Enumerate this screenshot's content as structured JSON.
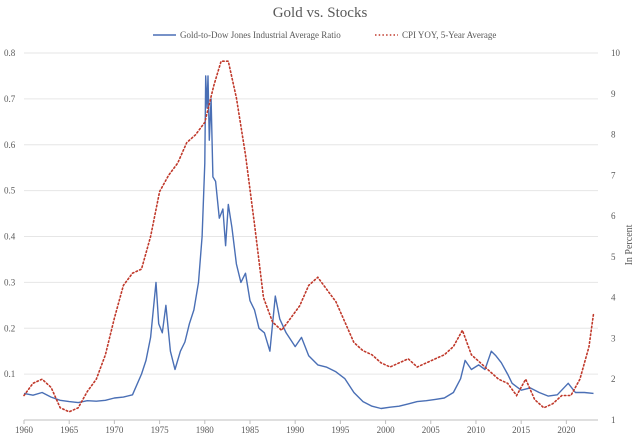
{
  "chart_data": {
    "type": "line",
    "title": "Gold vs. Stocks",
    "xlabel": "",
    "ylabel_left": "",
    "ylabel_right": "In Percent",
    "xlim": [
      1960,
      2023.5
    ],
    "ylim_left": [
      0,
      0.8
    ],
    "ylim_right": [
      1,
      10
    ],
    "x_ticks": [
      1960,
      1965,
      1970,
      1975,
      1980,
      1985,
      1990,
      1995,
      2000,
      2005,
      2010,
      2015,
      2020
    ],
    "x_tick_labels": [
      "1960",
      "1965",
      "1970",
      "1975",
      "1980",
      "1985",
      "1990",
      "1995",
      "2000",
      "2005",
      "2010",
      "2015",
      "2020"
    ],
    "y_left_ticks": [
      0.1,
      0.2,
      0.3,
      0.4,
      0.5,
      0.6,
      0.7,
      0.8
    ],
    "y_left_tick_labels": [
      "0.1",
      "0.2",
      "0.3",
      "0.4",
      "0.5",
      "0.6",
      "0.7",
      "0.8"
    ],
    "y_right_ticks": [
      1,
      2,
      3,
      4,
      5,
      6,
      7,
      8,
      9,
      10
    ],
    "y_right_tick_labels": [
      "1",
      "2",
      "3",
      "4",
      "5",
      "6",
      "7",
      "8",
      "9",
      "10"
    ],
    "legend_position": "top-center",
    "series": [
      {
        "name": "Gold-to-Dow Jones Industrial Average Ratio",
        "axis": "left",
        "color": "#4a6fb5",
        "style": "solid",
        "points": [
          [
            1960.0,
            0.058
          ],
          [
            1961.0,
            0.054
          ],
          [
            1962.0,
            0.06
          ],
          [
            1963.0,
            0.05
          ],
          [
            1964.0,
            0.043
          ],
          [
            1965.0,
            0.04
          ],
          [
            1966.0,
            0.038
          ],
          [
            1967.0,
            0.042
          ],
          [
            1968.0,
            0.041
          ],
          [
            1969.0,
            0.043
          ],
          [
            1970.0,
            0.048
          ],
          [
            1971.0,
            0.05
          ],
          [
            1972.0,
            0.055
          ],
          [
            1973.0,
            0.1
          ],
          [
            1973.5,
            0.13
          ],
          [
            1974.0,
            0.18
          ],
          [
            1974.4,
            0.26
          ],
          [
            1974.6,
            0.3
          ],
          [
            1974.9,
            0.21
          ],
          [
            1975.3,
            0.19
          ],
          [
            1975.7,
            0.25
          ],
          [
            1976.2,
            0.15
          ],
          [
            1976.7,
            0.11
          ],
          [
            1977.3,
            0.15
          ],
          [
            1977.8,
            0.17
          ],
          [
            1978.3,
            0.21
          ],
          [
            1978.8,
            0.24
          ],
          [
            1979.3,
            0.3
          ],
          [
            1979.7,
            0.4
          ],
          [
            1980.0,
            0.56
          ],
          [
            1980.1,
            0.75
          ],
          [
            1980.25,
            0.68
          ],
          [
            1980.35,
            0.75
          ],
          [
            1980.5,
            0.61
          ],
          [
            1980.7,
            0.7
          ],
          [
            1980.9,
            0.53
          ],
          [
            1981.2,
            0.52
          ],
          [
            1981.6,
            0.44
          ],
          [
            1982.0,
            0.46
          ],
          [
            1982.3,
            0.38
          ],
          [
            1982.6,
            0.47
          ],
          [
            1983.0,
            0.42
          ],
          [
            1983.5,
            0.34
          ],
          [
            1984.0,
            0.3
          ],
          [
            1984.5,
            0.32
          ],
          [
            1985.0,
            0.26
          ],
          [
            1985.5,
            0.24
          ],
          [
            1986.0,
            0.2
          ],
          [
            1986.6,
            0.19
          ],
          [
            1987.2,
            0.15
          ],
          [
            1987.8,
            0.27
          ],
          [
            1988.3,
            0.22
          ],
          [
            1989.0,
            0.19
          ],
          [
            1990.0,
            0.16
          ],
          [
            1990.7,
            0.18
          ],
          [
            1991.5,
            0.14
          ],
          [
            1992.5,
            0.12
          ],
          [
            1993.5,
            0.115
          ],
          [
            1994.5,
            0.105
          ],
          [
            1995.5,
            0.09
          ],
          [
            1996.5,
            0.06
          ],
          [
            1997.5,
            0.04
          ],
          [
            1998.5,
            0.03
          ],
          [
            1999.5,
            0.025
          ],
          [
            2000.5,
            0.028
          ],
          [
            2001.5,
            0.03
          ],
          [
            2002.5,
            0.035
          ],
          [
            2003.5,
            0.04
          ],
          [
            2004.5,
            0.042
          ],
          [
            2005.5,
            0.045
          ],
          [
            2006.5,
            0.048
          ],
          [
            2007.5,
            0.06
          ],
          [
            2008.3,
            0.09
          ],
          [
            2008.8,
            0.13
          ],
          [
            2009.5,
            0.11
          ],
          [
            2010.3,
            0.12
          ],
          [
            2011.0,
            0.11
          ],
          [
            2011.7,
            0.15
          ],
          [
            2012.2,
            0.14
          ],
          [
            2012.8,
            0.125
          ],
          [
            2013.5,
            0.1
          ],
          [
            2014.0,
            0.08
          ],
          [
            2015.0,
            0.065
          ],
          [
            2016.0,
            0.07
          ],
          [
            2017.0,
            0.06
          ],
          [
            2018.0,
            0.052
          ],
          [
            2019.0,
            0.055
          ],
          [
            2020.2,
            0.08
          ],
          [
            2021.0,
            0.06
          ],
          [
            2022.0,
            0.06
          ],
          [
            2023.0,
            0.058
          ]
        ]
      },
      {
        "name": "CPI YOY, 5-Year Average",
        "axis": "right",
        "color": "#c0392b",
        "style": "dotted",
        "points": [
          [
            1960.0,
            1.6
          ],
          [
            1961.0,
            1.9
          ],
          [
            1962.0,
            2.0
          ],
          [
            1963.0,
            1.8
          ],
          [
            1964.0,
            1.3
          ],
          [
            1965.0,
            1.2
          ],
          [
            1966.0,
            1.3
          ],
          [
            1967.0,
            1.7
          ],
          [
            1968.0,
            2.0
          ],
          [
            1969.0,
            2.6
          ],
          [
            1970.0,
            3.5
          ],
          [
            1971.0,
            4.3
          ],
          [
            1972.0,
            4.6
          ],
          [
            1973.0,
            4.7
          ],
          [
            1974.0,
            5.5
          ],
          [
            1975.0,
            6.6
          ],
          [
            1976.0,
            7.0
          ],
          [
            1977.0,
            7.3
          ],
          [
            1978.0,
            7.8
          ],
          [
            1979.0,
            8.0
          ],
          [
            1980.0,
            8.3
          ],
          [
            1981.0,
            9.2
          ],
          [
            1981.8,
            9.8
          ],
          [
            1982.6,
            9.8
          ],
          [
            1983.5,
            8.9
          ],
          [
            1984.5,
            7.5
          ],
          [
            1985.5,
            5.8
          ],
          [
            1986.5,
            4.0
          ],
          [
            1987.5,
            3.4
          ],
          [
            1988.5,
            3.2
          ],
          [
            1989.5,
            3.5
          ],
          [
            1990.5,
            3.8
          ],
          [
            1991.5,
            4.3
          ],
          [
            1992.5,
            4.5
          ],
          [
            1993.5,
            4.2
          ],
          [
            1994.5,
            3.9
          ],
          [
            1995.5,
            3.4
          ],
          [
            1996.5,
            2.9
          ],
          [
            1997.5,
            2.7
          ],
          [
            1998.5,
            2.6
          ],
          [
            1999.5,
            2.4
          ],
          [
            2000.5,
            2.3
          ],
          [
            2001.5,
            2.4
          ],
          [
            2002.5,
            2.5
          ],
          [
            2003.5,
            2.3
          ],
          [
            2004.5,
            2.4
          ],
          [
            2005.5,
            2.5
          ],
          [
            2006.5,
            2.6
          ],
          [
            2007.5,
            2.8
          ],
          [
            2008.5,
            3.2
          ],
          [
            2009.5,
            2.6
          ],
          [
            2010.5,
            2.4
          ],
          [
            2011.5,
            2.2
          ],
          [
            2012.5,
            2.0
          ],
          [
            2013.5,
            1.9
          ],
          [
            2014.5,
            1.6
          ],
          [
            2015.5,
            2.0
          ],
          [
            2016.5,
            1.5
          ],
          [
            2017.5,
            1.3
          ],
          [
            2018.5,
            1.4
          ],
          [
            2019.5,
            1.6
          ],
          [
            2020.5,
            1.6
          ],
          [
            2021.5,
            2.0
          ],
          [
            2022.5,
            2.8
          ],
          [
            2023.0,
            3.6
          ]
        ]
      }
    ]
  }
}
